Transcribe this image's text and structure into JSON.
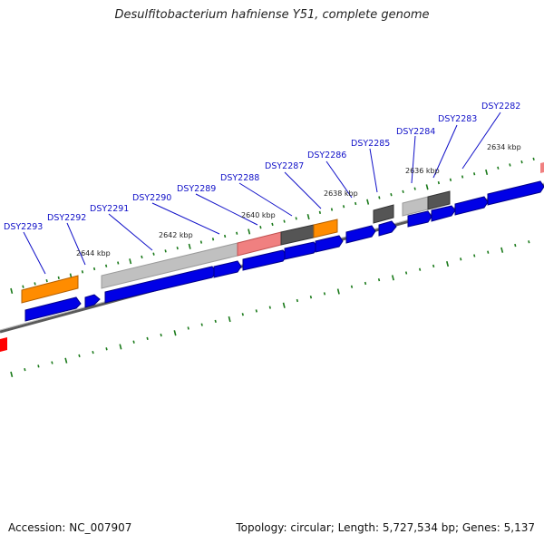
{
  "title": "Desulfitobacterium hafniense Y51, complete genome",
  "accession": "Accession: NC_007907",
  "topology": "Topology: circular; Length: 5,727,534 bp; Genes: 5,137",
  "colors": {
    "cds_forward": "#0000e6",
    "backbone": "#888888",
    "tick": "#1a7a1a",
    "gene_label": "#1010c8",
    "orange_feature": "#ff8c00",
    "pink_feature": "#f08080",
    "dark_gray_feature": "#555555",
    "light_gray_feature": "#c8c8c8",
    "red_feature": "#ff0000"
  },
  "gene_labels": [
    {
      "id": "DSY2293",
      "text": "DSY2293"
    },
    {
      "id": "DSY2292",
      "text": "DSY2292"
    },
    {
      "id": "DSY2291",
      "text": "DSY2291"
    },
    {
      "id": "DSY2290",
      "text": "DSY2290"
    },
    {
      "id": "DSY2289",
      "text": "DSY2289"
    },
    {
      "id": "DSY2288",
      "text": "DSY2288"
    },
    {
      "id": "DSY2287",
      "text": "DSY2287"
    },
    {
      "id": "DSY2286",
      "text": "DSY2286"
    },
    {
      "id": "DSY2285",
      "text": "DSY2285"
    },
    {
      "id": "DSY2284",
      "text": "DSY2284"
    },
    {
      "id": "DSY2283",
      "text": "DSY2283"
    },
    {
      "id": "DSY2282",
      "text": "DSY2282"
    }
  ],
  "position_labels": [
    {
      "id": "2644",
      "text": "2644 kbp"
    },
    {
      "id": "2642",
      "text": "2642 kbp"
    },
    {
      "id": "2640",
      "text": "2640 kbp"
    },
    {
      "id": "2638",
      "text": "2638 kbp"
    },
    {
      "id": "2636",
      "text": "2636 kbp"
    },
    {
      "id": "2634",
      "text": "2634 kbp"
    }
  ]
}
